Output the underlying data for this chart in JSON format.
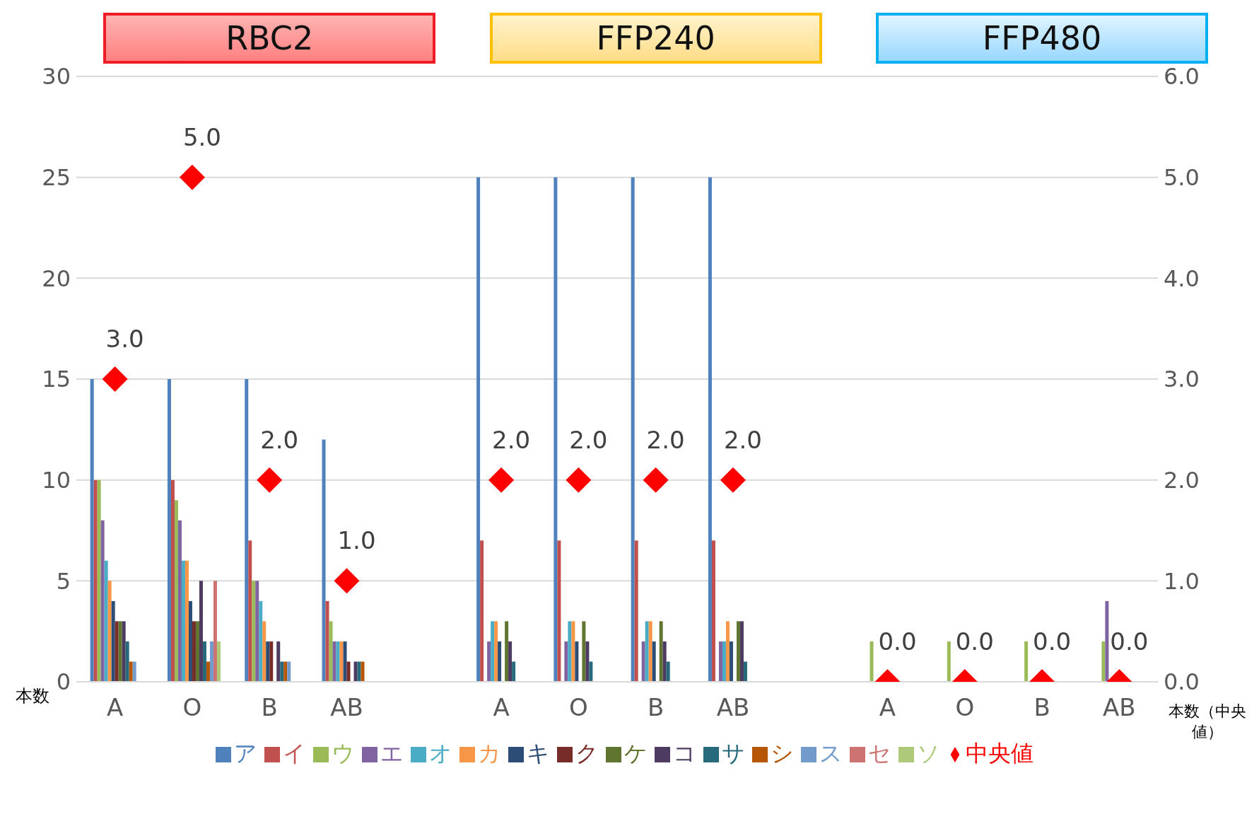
{
  "chart_data": {
    "type": "bar",
    "annotations": [
      "RBC2",
      "FFP240",
      "FFP480"
    ],
    "ylabel": "本数",
    "y2label": "本数（中央値）",
    "categories": [
      "A",
      "O",
      "B",
      "AB",
      null,
      "A",
      "O",
      "B",
      "AB",
      null,
      "A",
      "O",
      "B",
      "AB"
    ],
    "ylim": [
      0,
      30
    ],
    "yticks": [
      0,
      5,
      10,
      15,
      20,
      25,
      30
    ],
    "y2lim": [
      0,
      6
    ],
    "y2ticks": [
      {
        "value": 0,
        "label": "0.0"
      },
      {
        "value": 1,
        "label": "1.0"
      },
      {
        "value": 2,
        "label": "2.0"
      },
      {
        "value": 3,
        "label": "3.0"
      },
      {
        "value": 4,
        "label": "4.0"
      },
      {
        "value": 5,
        "label": "5.0"
      },
      {
        "value": 6,
        "label": "6.0"
      }
    ],
    "grid": "y",
    "legend": "bottom",
    "series": [
      {
        "name": "ア",
        "color": "#4f81bd",
        "values": [
          15,
          15,
          15,
          12,
          null,
          25,
          25,
          25,
          25,
          null,
          0,
          0,
          0,
          0
        ]
      },
      {
        "name": "イ",
        "color": "#c0504d",
        "values": [
          10,
          10,
          7,
          4,
          null,
          7,
          7,
          7,
          7,
          null,
          0,
          0,
          0,
          0
        ]
      },
      {
        "name": "ウ",
        "color": "#9bbb59",
        "values": [
          10,
          9,
          5,
          3,
          null,
          0,
          0,
          0,
          0,
          null,
          2,
          2,
          2,
          2
        ]
      },
      {
        "name": "エ",
        "color": "#8064a2",
        "values": [
          8,
          8,
          5,
          2,
          null,
          2,
          2,
          2,
          2,
          null,
          0,
          0,
          0,
          4
        ]
      },
      {
        "name": "オ",
        "color": "#4bacc6",
        "values": [
          6,
          6,
          4,
          2,
          null,
          3,
          3,
          3,
          2,
          null,
          0,
          0,
          0,
          0
        ]
      },
      {
        "name": "カ",
        "color": "#f79646",
        "values": [
          5,
          6,
          3,
          2,
          null,
          3,
          3,
          3,
          3,
          null,
          0,
          0,
          0,
          0
        ]
      },
      {
        "name": "キ",
        "color": "#2c4d75",
        "values": [
          4,
          4,
          2,
          2,
          null,
          2,
          2,
          2,
          2,
          null,
          0,
          0,
          0,
          0
        ]
      },
      {
        "name": "ク",
        "color": "#772c2a",
        "values": [
          3,
          3,
          2,
          1,
          null,
          0,
          0,
          0,
          0,
          null,
          0,
          0,
          0,
          0
        ]
      },
      {
        "name": "ケ",
        "color": "#5f7530",
        "values": [
          3,
          3,
          0,
          0,
          null,
          3,
          3,
          3,
          3,
          null,
          0,
          0,
          0,
          0
        ]
      },
      {
        "name": "コ",
        "color": "#4d3b62",
        "values": [
          3,
          5,
          2,
          1,
          null,
          2,
          2,
          2,
          3,
          null,
          0,
          0,
          0,
          0
        ]
      },
      {
        "name": "サ",
        "color": "#276a7c",
        "values": [
          2,
          2,
          1,
          1,
          null,
          1,
          1,
          1,
          1,
          null,
          0,
          0,
          0,
          0
        ]
      },
      {
        "name": "シ",
        "color": "#b65708",
        "values": [
          1,
          1,
          1,
          1,
          null,
          0,
          0,
          0,
          0,
          null,
          0,
          0,
          0,
          0
        ]
      },
      {
        "name": "ス",
        "color": "#729aca",
        "values": [
          1,
          2,
          1,
          0,
          null,
          0,
          0,
          0,
          0,
          null,
          0,
          0,
          0,
          0
        ]
      },
      {
        "name": "セ",
        "color": "#cd7371",
        "values": [
          0,
          5,
          0,
          0,
          null,
          0,
          0,
          0,
          0,
          null,
          0,
          0,
          0,
          0
        ]
      },
      {
        "name": "ソ",
        "color": "#afc97a",
        "values": [
          0,
          2,
          0,
          0,
          null,
          0,
          0,
          0,
          0,
          null,
          0,
          0,
          0,
          0
        ]
      },
      {
        "name": "中央値",
        "type": "scatter",
        "axis": "y2",
        "marker": "diamond",
        "color": "#ff0000",
        "values": [
          3,
          5,
          2,
          1,
          null,
          2,
          2,
          2,
          2,
          null,
          0,
          0,
          0,
          0
        ],
        "value_labels": [
          "3.0",
          "5.0",
          "2.0",
          "1.0",
          null,
          "2.0",
          "2.0",
          "2.0",
          "2.0",
          null,
          "0.0",
          "0.0",
          "0.0",
          "0.0"
        ]
      }
    ]
  }
}
